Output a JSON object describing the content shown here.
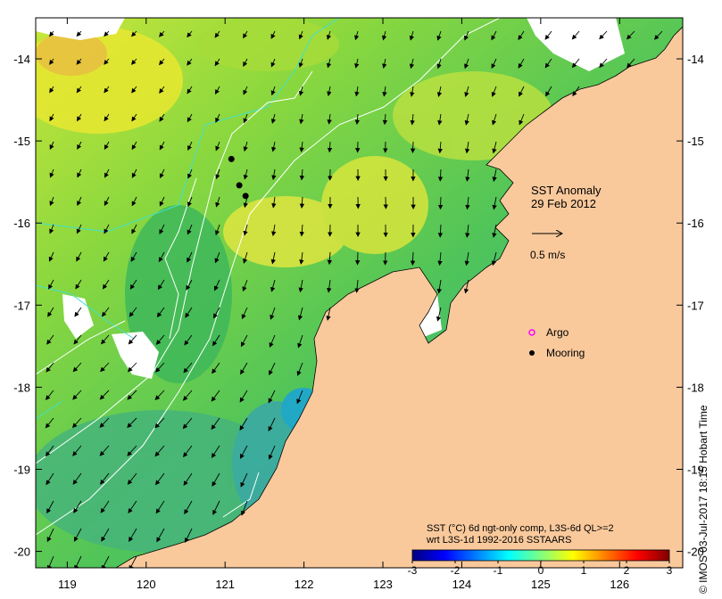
{
  "map": {
    "title_lines": [
      "SST Anomaly",
      "29 Feb 2012"
    ],
    "scale_arrow_label": "0.5 m/s",
    "lon_ticks": [
      119,
      120,
      121,
      122,
      123,
      124,
      125,
      126
    ],
    "lat_ticks": [
      -14,
      -15,
      -16,
      -17,
      -18,
      -19,
      -20
    ],
    "lon_range": [
      118.6,
      126.8
    ],
    "lat_range": [
      -20.2,
      -13.5
    ],
    "legend": {
      "argo_label": "Argo",
      "mooring_label": "Mooring",
      "argo_color": "#ff00ff",
      "mooring_color": "#000000"
    },
    "moorings": [
      {
        "lon": 121.08,
        "lat": -15.22
      },
      {
        "lon": 121.18,
        "lat": -15.54
      },
      {
        "lon": 121.26,
        "lat": -15.67
      }
    ],
    "colorbar": {
      "caption_line1": "SST (°C) 6d ngt-only comp, L3S-6d QL>=2",
      "caption_line2": "wrt L3S-1d 1992-2016 SSTAARS",
      "ticks": [
        "-3",
        "-2",
        "-1",
        "0",
        "1",
        "2",
        "3"
      ],
      "colors": [
        "#00007f",
        "#0000ff",
        "#007fff",
        "#00ffff",
        "#7fff7f",
        "#ffff00",
        "#ff7f00",
        "#ff0000",
        "#7f0000"
      ]
    },
    "credit": "© IMOS 03-Jul-2017 18:15 Hobart Time",
    "colors": {
      "land": "#f9c99c",
      "ocean_base": "#6ed23a",
      "contour": "#ffffff",
      "isobath": "#40e0d0",
      "missing": "#ffffff"
    }
  }
}
